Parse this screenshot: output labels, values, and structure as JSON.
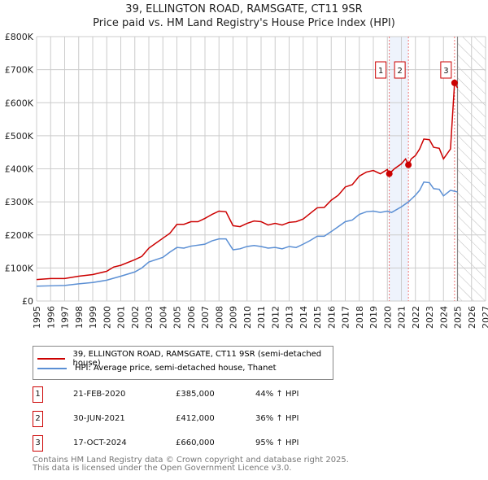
{
  "chart_data": {
    "type": "line",
    "title": "39, ELLINGTON ROAD, RAMSGATE, CT11 9SR",
    "subtitle": "Price paid vs. HM Land Registry's House Price Index (HPI)",
    "xlim": [
      1995,
      2027
    ],
    "ylim": [
      0,
      800000
    ],
    "x_ticks": [
      "1995",
      "1996",
      "1997",
      "1998",
      "1999",
      "2000",
      "2001",
      "2002",
      "2003",
      "2004",
      "2005",
      "2006",
      "2007",
      "2008",
      "2009",
      "2010",
      "2011",
      "2012",
      "2013",
      "2014",
      "2015",
      "2016",
      "2017",
      "2018",
      "2019",
      "2020",
      "2021",
      "2022",
      "2023",
      "2024",
      "2025",
      "2026",
      "2027"
    ],
    "y_ticks": [
      {
        "v": 0,
        "label": "£0"
      },
      {
        "v": 100000,
        "label": "£100K"
      },
      {
        "v": 200000,
        "label": "£200K"
      },
      {
        "v": 300000,
        "label": "£300K"
      },
      {
        "v": 400000,
        "label": "£400K"
      },
      {
        "v": 500000,
        "label": "£500K"
      },
      {
        "v": 600000,
        "label": "£600K"
      },
      {
        "v": 700000,
        "label": "£700K"
      },
      {
        "v": 800000,
        "label": "£800K"
      }
    ],
    "grid": true,
    "forecast_start": 2025.0,
    "series": [
      {
        "name": "39, ELLINGTON ROAD, RAMSGATE, CT11 9SR (semi-detached house)",
        "color": "#cc0000",
        "x": [
          1995,
          1996,
          1997,
          1998,
          1999,
          2000,
          2000.5,
          2001,
          2002,
          2002.5,
          2003,
          2003.5,
          2004,
          2004.5,
          2005,
          2005.5,
          2006,
          2006.5,
          2007,
          2007.5,
          2008,
          2008.5,
          2009,
          2009.5,
          2010,
          2010.5,
          2011,
          2011.5,
          2012,
          2012.5,
          2013,
          2013.5,
          2014,
          2014.5,
          2015,
          2015.5,
          2016,
          2016.5,
          2017,
          2017.5,
          2018,
          2018.5,
          2019,
          2019.5,
          2020,
          2020.14,
          2020.5,
          2021,
          2021.3,
          2021.5,
          2021.7,
          2022,
          2022.3,
          2022.6,
          2023,
          2023.3,
          2023.7,
          2024,
          2024.5,
          2024.79,
          2025
        ],
        "y": [
          65000,
          68000,
          68000,
          75000,
          80000,
          90000,
          103000,
          108000,
          125000,
          135000,
          160000,
          175000,
          190000,
          205000,
          232000,
          232000,
          240000,
          240000,
          250000,
          262000,
          272000,
          270000,
          228000,
          225000,
          235000,
          242000,
          240000,
          230000,
          235000,
          230000,
          238000,
          240000,
          248000,
          265000,
          282000,
          283000,
          305000,
          320000,
          345000,
          352000,
          378000,
          390000,
          395000,
          385000,
          398000,
          385000,
          400000,
          415000,
          430000,
          412000,
          430000,
          440000,
          460000,
          490000,
          488000,
          465000,
          462000,
          430000,
          460000,
          660000,
          645000
        ]
      },
      {
        "name": "HPI: Average price, semi-detached house, Thanet",
        "color": "#5b8fd4",
        "x": [
          1995,
          1996,
          1997,
          1998,
          1999,
          2000,
          2001,
          2002,
          2002.5,
          2003,
          2004,
          2004.5,
          2005,
          2005.5,
          2006,
          2007,
          2007.5,
          2008,
          2008.5,
          2009,
          2009.5,
          2010,
          2010.5,
          2011,
          2011.5,
          2012,
          2012.5,
          2013,
          2013.5,
          2014,
          2014.5,
          2015,
          2015.5,
          2016,
          2016.5,
          2017,
          2017.5,
          2018,
          2018.5,
          2019,
          2019.5,
          2020,
          2020.3,
          2021,
          2021.5,
          2022,
          2022.3,
          2022.6,
          2023,
          2023.3,
          2023.7,
          2024,
          2024.5,
          2024.8,
          2025
        ],
        "y": [
          45000,
          46000,
          47000,
          52000,
          56000,
          63000,
          75000,
          88000,
          100000,
          118000,
          132000,
          148000,
          162000,
          160000,
          166000,
          172000,
          182000,
          188000,
          188000,
          155000,
          158000,
          165000,
          168000,
          165000,
          160000,
          162000,
          158000,
          165000,
          162000,
          172000,
          183000,
          196000,
          196000,
          210000,
          225000,
          240000,
          245000,
          262000,
          270000,
          272000,
          268000,
          272000,
          268000,
          285000,
          300000,
          320000,
          335000,
          360000,
          358000,
          340000,
          338000,
          318000,
          335000,
          332000,
          330000
        ]
      }
    ],
    "sales": [
      {
        "id": "1",
        "x": 2020.14,
        "price": 385000,
        "date": "21-FEB-2020",
        "price_label": "£385,000",
        "hpi": "44% ↑ HPI"
      },
      {
        "id": "2",
        "x": 2021.5,
        "price": 412000,
        "date": "30-JUN-2021",
        "price_label": "£412,000",
        "hpi": "36% ↑ HPI"
      },
      {
        "id": "3",
        "x": 2024.79,
        "price": 660000,
        "date": "17-OCT-2024",
        "price_label": "£660,000",
        "hpi": "95% ↑ HPI"
      }
    ]
  },
  "footer": {
    "line1": "Contains HM Land Registry data © Crown copyright and database right 2025.",
    "line2": "This data is licensed under the Open Government Licence v3.0."
  }
}
